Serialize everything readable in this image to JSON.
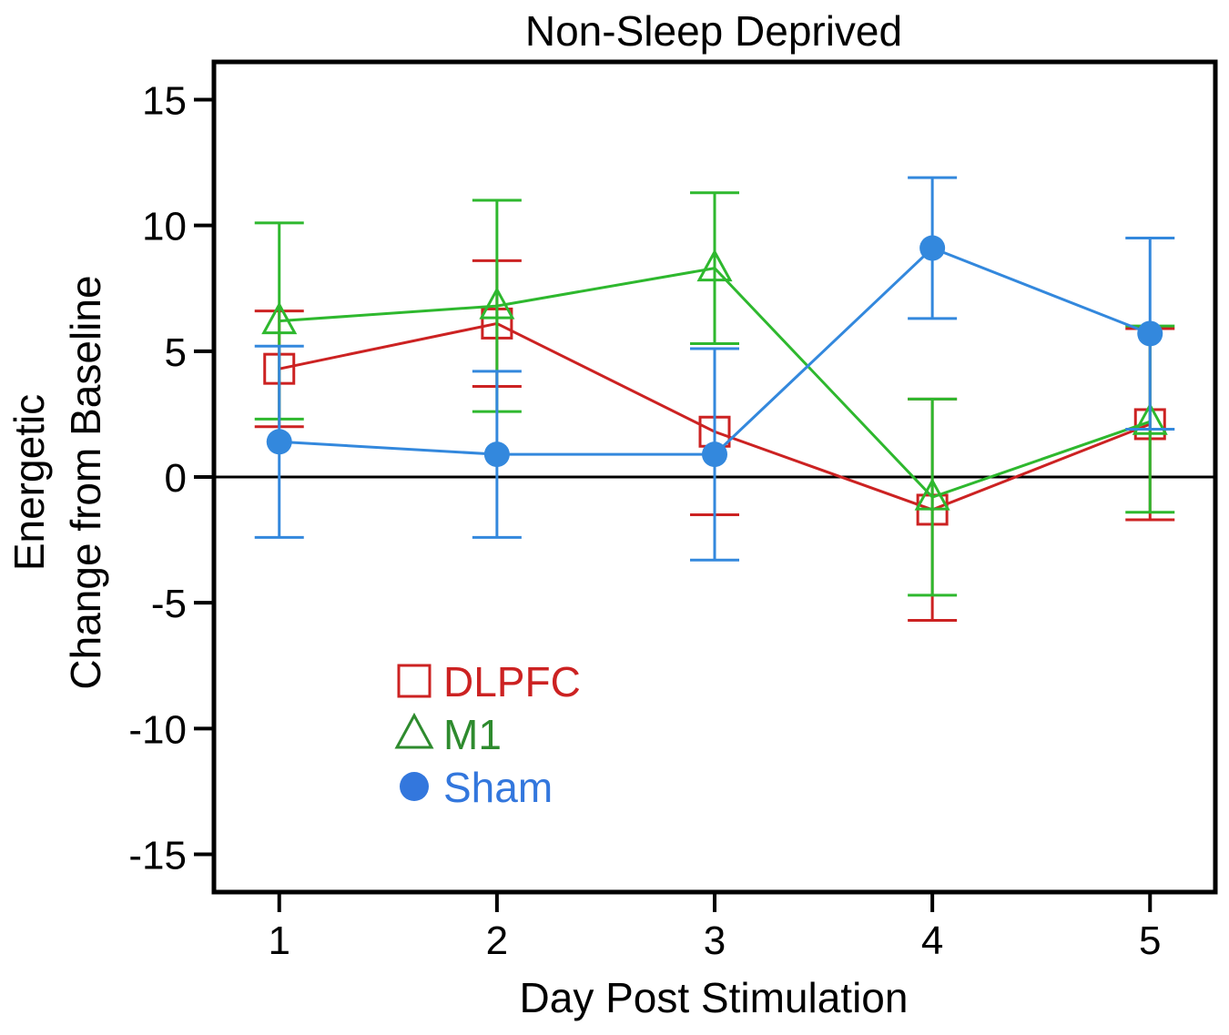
{
  "chart_data": {
    "type": "line",
    "title": "Non-Sleep Deprived",
    "xlabel": "Day Post Stimulation",
    "ylabel_lines": [
      "Energetic",
      "Change from Baseline"
    ],
    "x": [
      1,
      2,
      3,
      4,
      5
    ],
    "xticks": [
      "1",
      "2",
      "3",
      "4",
      "5"
    ],
    "xlim": [
      0.7,
      5.3
    ],
    "ylim": [
      -16.5,
      16.5
    ],
    "yticks": [
      "15",
      "10",
      "5",
      "0",
      "-5",
      "-10",
      "-15"
    ],
    "ytick_values": [
      15,
      10,
      5,
      0,
      -5,
      -10,
      -15
    ],
    "reference_line": 0,
    "series": [
      {
        "name": "DLPFC",
        "marker": "square",
        "color": "#cc2222",
        "values": [
          4.3,
          6.1,
          1.8,
          -1.3,
          2.1
        ],
        "err_low": [
          2.0,
          3.6,
          -1.5,
          -5.7,
          -1.7
        ],
        "err_high": [
          6.6,
          8.6,
          5.1,
          3.1,
          5.9
        ]
      },
      {
        "name": "M1",
        "marker": "triangle",
        "color": "#2eb82e",
        "values": [
          6.2,
          6.8,
          8.3,
          -0.8,
          2.2
        ],
        "err_low": [
          2.3,
          2.6,
          5.3,
          -4.7,
          -1.4
        ],
        "err_high": [
          10.1,
          11.0,
          11.3,
          3.1,
          6.0
        ]
      },
      {
        "name": "Sham",
        "marker": "circle",
        "color": "#3388dd",
        "values": [
          1.4,
          0.9,
          0.9,
          9.1,
          5.7
        ],
        "err_low": [
          -2.4,
          -2.4,
          -3.3,
          6.3,
          1.9
        ],
        "err_high": [
          5.2,
          4.2,
          5.1,
          11.9,
          9.5
        ]
      }
    ],
    "legend": {
      "position": "bottom-left",
      "entries": [
        {
          "label": "DLPFC",
          "color": "#cc2222"
        },
        {
          "label": "M1",
          "color": "#2e8b2e"
        },
        {
          "label": "Sham",
          "color": "#3377dd"
        }
      ]
    }
  }
}
